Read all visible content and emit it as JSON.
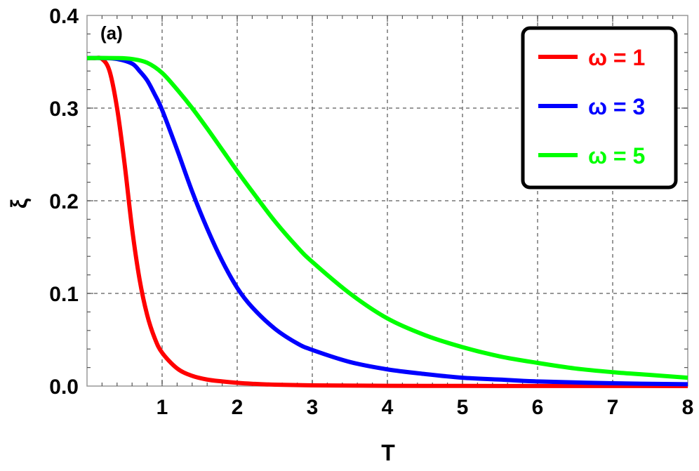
{
  "chart_data": {
    "type": "line",
    "panel_label": "(a)",
    "xlabel": "T",
    "ylabel": "ξ",
    "xlim": [
      0,
      8
    ],
    "ylim": [
      0,
      0.4
    ],
    "x_ticks": [
      "1",
      "2",
      "3",
      "4",
      "5",
      "6",
      "7",
      "8"
    ],
    "y_ticks": [
      "0.0",
      "0.1",
      "0.2",
      "0.3",
      "0.4"
    ],
    "grid": true,
    "legend_position": "top-right",
    "series": [
      {
        "name": "ω = 1",
        "color": "#ff0000",
        "x": [
          0.0,
          0.1,
          0.2,
          0.3,
          0.4,
          0.5,
          0.6,
          0.7,
          0.8,
          0.9,
          1.0,
          1.2,
          1.4,
          1.6,
          1.8,
          2.0,
          2.2,
          2.5,
          3.0,
          4.0,
          5.0,
          6.0,
          7.0,
          8.0
        ],
        "values": [
          0.354,
          0.354,
          0.353,
          0.34,
          0.3,
          0.24,
          0.17,
          0.115,
          0.077,
          0.052,
          0.036,
          0.019,
          0.011,
          0.007,
          0.005,
          0.0035,
          0.0025,
          0.0015,
          0.0008,
          0.0003,
          0.0002,
          0.0001,
          0.0001,
          0.0
        ]
      },
      {
        "name": "ω = 3",
        "color": "#0000ff",
        "x": [
          0.0,
          0.2,
          0.4,
          0.6,
          0.7,
          0.8,
          0.9,
          1.0,
          1.2,
          1.4,
          1.6,
          1.8,
          2.0,
          2.2,
          2.5,
          2.8,
          3.0,
          3.5,
          4.0,
          4.5,
          5.0,
          5.5,
          6.0,
          7.0,
          8.0
        ],
        "values": [
          0.354,
          0.354,
          0.353,
          0.348,
          0.34,
          0.33,
          0.315,
          0.298,
          0.255,
          0.21,
          0.17,
          0.135,
          0.106,
          0.085,
          0.062,
          0.046,
          0.039,
          0.026,
          0.018,
          0.013,
          0.009,
          0.007,
          0.005,
          0.003,
          0.002
        ]
      },
      {
        "name": "ω = 5",
        "color": "#00ff00",
        "x": [
          0.0,
          0.4,
          0.6,
          0.8,
          1.0,
          1.2,
          1.4,
          1.6,
          1.8,
          2.0,
          2.2,
          2.5,
          2.8,
          3.0,
          3.5,
          4.0,
          4.5,
          5.0,
          5.5,
          6.0,
          6.5,
          7.0,
          7.5,
          8.0
        ],
        "values": [
          0.354,
          0.354,
          0.353,
          0.349,
          0.338,
          0.32,
          0.3,
          0.278,
          0.255,
          0.232,
          0.21,
          0.178,
          0.15,
          0.134,
          0.1,
          0.073,
          0.055,
          0.042,
          0.032,
          0.025,
          0.019,
          0.015,
          0.012,
          0.009
        ]
      }
    ]
  }
}
